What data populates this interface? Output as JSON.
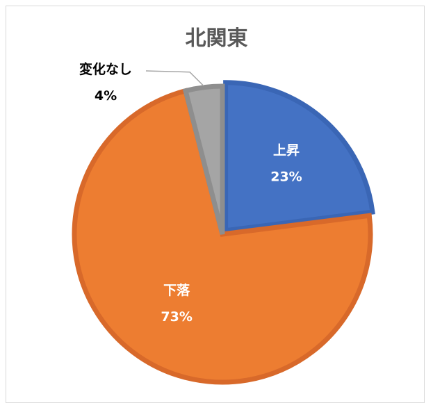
{
  "chart_data": {
    "type": "pie",
    "title": "北関東",
    "slices": [
      {
        "label": "上昇",
        "value": 23,
        "value_label": "23%",
        "color": "#4472c4",
        "stroke": "#3a66b5",
        "label_color": "#ffffff"
      },
      {
        "label": "下落",
        "value": 73,
        "value_label": "73%",
        "color": "#ed7d31",
        "stroke": "#d8692a",
        "label_color": "#ffffff"
      },
      {
        "label": "変化なし",
        "value": 4,
        "value_label": "4%",
        "color": "#a5a5a5",
        "stroke": "#8e8e8e",
        "label_color": "#000000"
      }
    ],
    "start": "12 o'clock, clockwise",
    "legend": "none"
  }
}
